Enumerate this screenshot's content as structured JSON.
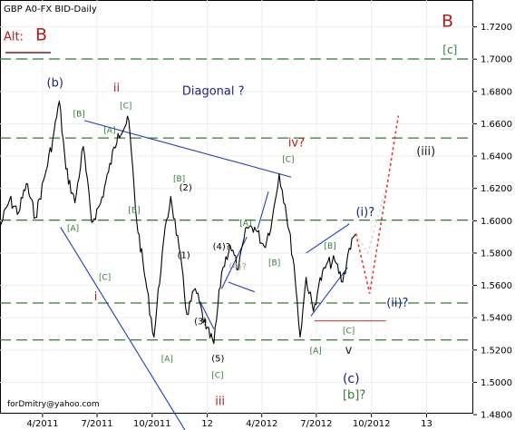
{
  "chart_data": {
    "type": "line",
    "title": "GBP A0-FX BID-Daily",
    "footer": "forDmitry@yahoo.com",
    "price_axis": {
      "ylim": [
        1.4806,
        1.7366
      ],
      "ticks": [
        1.72,
        1.7,
        1.68,
        1.66,
        1.64,
        1.62,
        1.6,
        1.58,
        1.56,
        1.54,
        1.52,
        1.5,
        1.48
      ],
      "tick_labels": [
        "1.7200",
        "1.7000",
        "1.6800",
        "1.6600",
        "1.6400",
        "1.6200",
        "1.6000",
        "1.5800",
        "1.5600",
        "1.5400",
        "1.5200",
        "1.5000",
        "1.4800"
      ]
    },
    "time_axis": {
      "labels": [
        "4/2011",
        "7/2011",
        "10/2011",
        "12",
        "4/2012",
        "7/2012",
        "10/2012",
        "13"
      ],
      "label_positions": [
        [
          "2011-04-01",
          "4/2011"
        ],
        [
          "2011-07-01",
          "7/2011"
        ],
        [
          "2011-10-01",
          "10/2011"
        ],
        [
          "2012-01-01",
          "12"
        ],
        [
          "2012-04-01",
          "4/2012"
        ],
        [
          "2012-07-01",
          "7/2012"
        ],
        [
          "2012-10-01",
          "10/2012"
        ],
        [
          "2013-01-01",
          "13"
        ]
      ],
      "xlim": [
        "2011-01-20",
        "2013-03-20"
      ]
    },
    "grid": true,
    "horizontal_levels": [
      {
        "price": 1.7001,
        "color": "#2e7d32",
        "style": "dashed"
      },
      {
        "price": 1.6512,
        "color": "#2e7d32",
        "style": "dashed"
      },
      {
        "price": 1.6004,
        "color": "#2e7d32",
        "style": "dashed"
      },
      {
        "price": 1.5491,
        "color": "#2e7d32",
        "style": "dashed"
      },
      {
        "price": 1.5262,
        "color": "#2e7d32",
        "style": "dashed"
      }
    ],
    "price_series": [
      [
        "2011-01-20",
        1.596
      ],
      [
        "2011-02-05",
        1.613
      ],
      [
        "2011-02-20",
        1.605
      ],
      [
        "2011-03-05",
        1.623
      ],
      [
        "2011-03-20",
        1.602
      ],
      [
        "2011-04-05",
        1.628
      ],
      [
        "2011-04-18",
        1.65
      ],
      [
        "2011-04-29",
        1.674
      ],
      [
        "2011-05-10",
        1.632
      ],
      [
        "2011-05-25",
        1.611
      ],
      [
        "2011-06-08",
        1.646
      ],
      [
        "2011-06-22",
        1.599
      ],
      [
        "2011-07-07",
        1.611
      ],
      [
        "2011-07-20",
        1.63
      ],
      [
        "2011-08-05",
        1.654
      ],
      [
        "2011-08-23",
        1.662
      ],
      [
        "2011-09-05",
        1.6
      ],
      [
        "2011-09-20",
        1.563
      ],
      [
        "2011-10-04",
        1.528
      ],
      [
        "2011-10-18",
        1.581
      ],
      [
        "2011-11-01",
        1.615
      ],
      [
        "2011-11-15",
        1.583
      ],
      [
        "2011-11-28",
        1.542
      ],
      [
        "2011-12-12",
        1.558
      ],
      [
        "2011-12-30",
        1.533
      ],
      [
        "2012-01-12",
        1.524
      ],
      [
        "2012-01-25",
        1.568
      ],
      [
        "2012-02-08",
        1.585
      ],
      [
        "2012-02-22",
        1.57
      ],
      [
        "2012-03-07",
        1.596
      ],
      [
        "2012-03-20",
        1.596
      ],
      [
        "2012-04-05",
        1.584
      ],
      [
        "2012-04-18",
        1.6
      ],
      [
        "2012-04-30",
        1.629
      ],
      [
        "2012-05-10",
        1.61
      ],
      [
        "2012-05-25",
        1.572
      ],
      [
        "2012-06-04",
        1.528
      ],
      [
        "2012-06-14",
        1.565
      ],
      [
        "2012-06-26",
        1.544
      ],
      [
        "2012-07-05",
        1.56
      ],
      [
        "2012-07-18",
        1.573
      ],
      [
        "2012-08-01",
        1.575
      ],
      [
        "2012-08-14",
        1.562
      ],
      [
        "2012-08-25",
        1.583
      ],
      [
        "2012-09-05",
        1.592
      ]
    ],
    "projections": [
      {
        "color": "#dcdcdc",
        "style": "dotted",
        "points": [
          [
            "2012-09-05",
            1.592
          ],
          [
            "2012-09-25",
            1.58
          ],
          [
            "2012-10-25",
            1.62
          ]
        ]
      },
      {
        "color": "#e53935",
        "style": "dotted",
        "points": [
          [
            "2012-09-05",
            1.592
          ],
          [
            "2012-09-28",
            1.555
          ],
          [
            "2012-11-15",
            1.665
          ]
        ]
      }
    ],
    "trendlines": [
      {
        "color": "#1e3fbf",
        "points": [
          [
            "2011-06-10",
            1.662
          ],
          [
            "2012-05-20",
            1.627
          ]
        ]
      },
      {
        "color": "#1e3fbf",
        "points": [
          [
            "2011-05-01",
            1.596
          ],
          [
            "2011-12-12",
            1.46
          ]
        ]
      },
      {
        "color": "#1e3fbf",
        "points": [
          [
            "2011-12-20",
            1.55
          ],
          [
            "2012-01-12",
            1.533
          ]
        ]
      },
      {
        "color": "#1e3fbf",
        "points": [
          [
            "2012-01-25",
            1.558
          ],
          [
            "2012-03-07",
            1.59
          ]
        ]
      },
      {
        "color": "#1e3fbf",
        "points": [
          [
            "2012-03-25",
            1.595
          ],
          [
            "2012-04-12",
            1.618
          ]
        ]
      },
      {
        "color": "#1e3fbf",
        "points": [
          [
            "2012-02-05",
            1.562
          ],
          [
            "2012-03-20",
            1.556
          ]
        ]
      },
      {
        "color": "#1e3fbf",
        "points": [
          [
            "2012-06-14",
            1.58
          ],
          [
            "2012-08-25",
            1.598
          ]
        ]
      },
      {
        "color": "#1e3fbf",
        "points": [
          [
            "2012-06-22",
            1.541
          ],
          [
            "2012-08-22",
            1.571
          ]
        ]
      },
      {
        "color": "#c62828",
        "points": [
          [
            "2012-06-28",
            1.538
          ],
          [
            "2012-10-25",
            1.538
          ]
        ]
      }
    ],
    "annotations": [
      {
        "text": "Alt:",
        "color": "#b71c1c",
        "date": "2011-01-26",
        "price": 1.7115,
        "size": 13
      },
      {
        "text": "B",
        "color": "#b71c1c",
        "date": "2011-03-20",
        "price": 1.7115,
        "size": 19
      },
      {
        "text": "B",
        "color": "#b71c1c",
        "date": "2013-01-26",
        "price": 1.72,
        "size": 19
      },
      {
        "text": "[c]",
        "color": "#2e7d32",
        "date": "2013-01-28",
        "price": 1.7036,
        "size": 12
      },
      {
        "text": "(b)",
        "color": "#1a237e",
        "date": "2011-04-08",
        "price": 1.683,
        "size": 13
      },
      {
        "text": "ii",
        "color": "#b71c1c",
        "date": "2011-07-28",
        "price": 1.68,
        "size": 13
      },
      {
        "text": "Diagonal ?",
        "color": "#1a237e",
        "date": "2011-11-20",
        "price": 1.678,
        "size": 13
      },
      {
        "text": "[B]",
        "color": "#2e7d32",
        "date": "2011-05-22",
        "price": 1.6646,
        "size": 9
      },
      {
        "text": "[C]",
        "color": "#2e7d32",
        "date": "2011-08-08",
        "price": 1.6696,
        "size": 9
      },
      {
        "text": "[A]",
        "color": "#2e7d32",
        "date": "2011-07-12",
        "price": 1.6544,
        "size": 9
      },
      {
        "text": "iv?",
        "color": "#b71c1c",
        "date": "2012-05-15",
        "price": 1.6458,
        "size": 13
      },
      {
        "text": "[C]",
        "color": "#2e7d32",
        "date": "2012-05-05",
        "price": 1.6364,
        "size": 9
      },
      {
        "text": "[B]",
        "color": "#2e7d32",
        "date": "2011-11-05",
        "price": 1.6242,
        "size": 9
      },
      {
        "text": "(2)",
        "color": "#000000",
        "date": "2011-11-15",
        "price": 1.6186,
        "size": 10
      },
      {
        "text": "(iii)",
        "color": "#212121",
        "date": "2012-12-15",
        "price": 1.6406,
        "size": 13
      },
      {
        "text": "[B]",
        "color": "#2e7d32",
        "date": "2011-08-22",
        "price": 1.605,
        "size": 9
      },
      {
        "text": "[A]",
        "color": "#2e7d32",
        "date": "2011-05-12",
        "price": 1.5936,
        "size": 9
      },
      {
        "text": "[A]",
        "color": "#2e7d32",
        "date": "2012-02-24",
        "price": 1.5968,
        "size": 9
      },
      {
        "text": "(i)?",
        "color": "#1a237e",
        "date": "2012-09-05",
        "price": 1.603,
        "size": 13
      },
      {
        "text": "[B]",
        "color": "#2e7d32",
        "date": "2012-07-14",
        "price": 1.5828,
        "size": 9
      },
      {
        "text": "(4)?",
        "color": "#000000",
        "date": "2012-01-10",
        "price": 1.5822,
        "size": 10
      },
      {
        "text": "(1)",
        "color": "#000000",
        "date": "2011-11-12",
        "price": 1.5768,
        "size": 10
      },
      {
        "text": "(4)?",
        "color": "#9e9e9e",
        "date": "2012-02-06",
        "price": 1.5698,
        "size": 10
      },
      {
        "text": "[B]",
        "color": "#2e7d32",
        "date": "2012-04-12",
        "price": 1.5724,
        "size": 9
      },
      {
        "text": "[C]",
        "color": "#2e7d32",
        "date": "2011-07-04",
        "price": 1.5634,
        "size": 9
      },
      {
        "text": "i",
        "color": "#b71c1c",
        "date": "2011-06-26",
        "price": 1.5508,
        "size": 13
      },
      {
        "text": "(ii)?",
        "color": "#1a237e",
        "date": "2012-10-26",
        "price": 1.5468,
        "size": 13
      },
      {
        "text": "(3)",
        "color": "#000000",
        "date": "2011-12-10",
        "price": 1.5358,
        "size": 10
      },
      {
        "text": "[C]",
        "color": "#2e7d32",
        "date": "2012-08-14",
        "price": 1.5304,
        "size": 9
      },
      {
        "text": "[A]",
        "color": "#2e7d32",
        "date": "2012-06-20",
        "price": 1.518,
        "size": 9
      },
      {
        "text": "v",
        "color": "#212121",
        "date": "2012-08-18",
        "price": 1.5176,
        "size": 13
      },
      {
        "text": "[A]",
        "color": "#2e7d32",
        "date": "2011-10-16",
        "price": 1.513,
        "size": 9
      },
      {
        "text": "(5)",
        "color": "#000000",
        "date": "2012-01-08",
        "price": 1.513,
        "size": 10
      },
      {
        "text": "(c)",
        "color": "#1a237e",
        "date": "2012-08-14",
        "price": 1.4996,
        "size": 14
      },
      {
        "text": "[C]",
        "color": "#2e7d32",
        "date": "2012-01-08",
        "price": 1.5028,
        "size": 9
      },
      {
        "text": "[b]?",
        "color": "#2e7d32",
        "date": "2012-08-14",
        "price": 1.4898,
        "size": 13
      },
      {
        "text": "iii",
        "color": "#b71c1c",
        "date": "2012-01-14",
        "price": 1.4858,
        "size": 13
      }
    ]
  }
}
